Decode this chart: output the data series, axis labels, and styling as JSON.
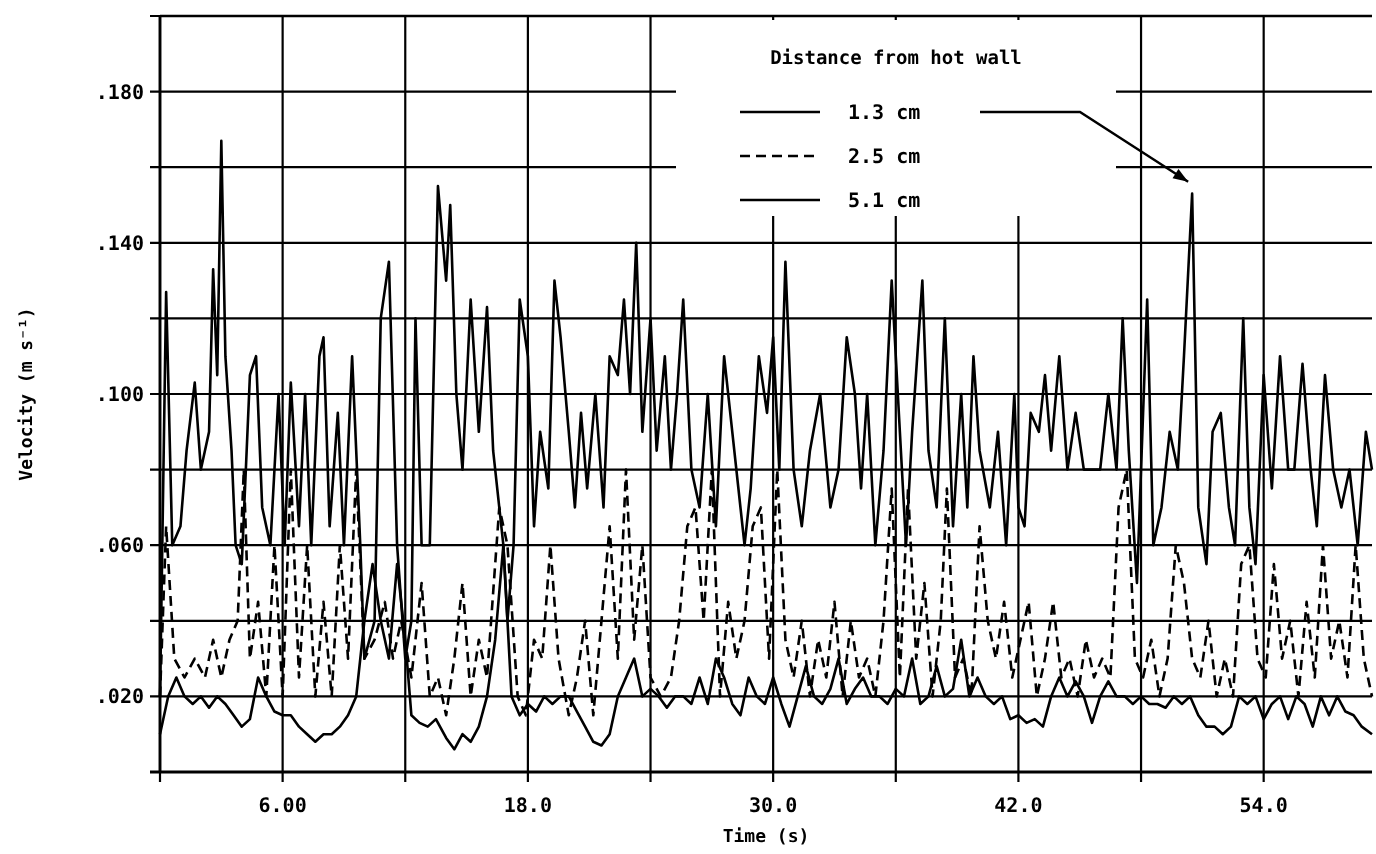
{
  "chart_data": {
    "type": "line",
    "xlabel": "Time (s)",
    "ylabel": "Velocity (m s⁻¹)",
    "legend_title": "Distance from hot wall",
    "legend": "top right",
    "grid": true,
    "marker": "none",
    "xlim": [
      0,
      59.3
    ],
    "ylim": [
      0,
      0.2
    ],
    "xticks": [
      {
        "value": 0,
        "label": null
      },
      {
        "value": 6,
        "label": "6.00"
      },
      {
        "value": 12,
        "label": null
      },
      {
        "value": 18,
        "label": "18.0"
      },
      {
        "value": 24,
        "label": null
      },
      {
        "value": 30,
        "label": "30.0"
      },
      {
        "value": 36,
        "label": null
      },
      {
        "value": 42,
        "label": "42.0"
      },
      {
        "value": 48,
        "label": null
      },
      {
        "value": 54,
        "label": "54.0"
      }
    ],
    "yticks": [
      {
        "value": 0,
        "label": null
      },
      {
        "value": 0.02,
        "label": ".020"
      },
      {
        "value": 0.04,
        "label": null
      },
      {
        "value": 0.06,
        "label": ".060"
      },
      {
        "value": 0.08,
        "label": null
      },
      {
        "value": 0.1,
        "label": ".100"
      },
      {
        "value": 0.12,
        "label": null
      },
      {
        "value": 0.14,
        "label": ".140"
      },
      {
        "value": 0.16,
        "label": null
      },
      {
        "value": 0.18,
        "label": ".180"
      },
      {
        "value": 0.2,
        "label": null
      }
    ],
    "series": [
      {
        "name": "1.3 cm",
        "color": "#000000",
        "line_style": "solid",
        "x": [
          0,
          0.3,
          0.6,
          1.0,
          1.3,
          1.7,
          2.0,
          2.4,
          2.6,
          2.8,
          3.0,
          3.2,
          3.5,
          3.7,
          4.0,
          4.4,
          4.7,
          5.0,
          5.4,
          5.8,
          6.1,
          6.4,
          6.8,
          7.1,
          7.4,
          7.8,
          8.0,
          8.3,
          8.7,
          9.0,
          9.4,
          9.8,
          10.0,
          10.5,
          10.8,
          11.2,
          11.6,
          12.0,
          12.3,
          12.5,
          12.8,
          13.2,
          13.6,
          14.0,
          14.2,
          14.5,
          14.8,
          15.2,
          15.6,
          16.0,
          16.3,
          16.8,
          17.0,
          17.3,
          17.6,
          18.0,
          18.3,
          18.6,
          19.0,
          19.3,
          19.6,
          20.0,
          20.3,
          20.6,
          20.9,
          21.3,
          21.7,
          22.0,
          22.4,
          22.7,
          23.0,
          23.3,
          23.6,
          24.0,
          24.3,
          24.7,
          25.0,
          25.3,
          25.6,
          26.0,
          26.4,
          26.8,
          27.2,
          27.6,
          28.0,
          28.3,
          28.6,
          28.9,
          29.3,
          29.7,
          30.0,
          30.3,
          30.6,
          31.0,
          31.4,
          31.8,
          32.3,
          32.8,
          33.2,
          33.6,
          34.0,
          34.3,
          34.6,
          35.0,
          35.4,
          35.8,
          36.2,
          36.5,
          36.8,
          37.3,
          37.6,
          38.0,
          38.4,
          38.8,
          39.2,
          39.5,
          39.8,
          40.1,
          40.6,
          41.0,
          41.4,
          41.8,
          42.0,
          42.3,
          42.6,
          43.0,
          43.3,
          43.6,
          44.0,
          44.4,
          44.8,
          45.2,
          45.6,
          46.0,
          46.4,
          46.8,
          47.1,
          47.4,
          47.8,
          48.3,
          48.6,
          49.0,
          49.4,
          49.8,
          50.1,
          50.5,
          50.8,
          51.2,
          51.5,
          51.9,
          52.3,
          52.6,
          53.0,
          53.3,
          53.6,
          54.0,
          54.4,
          54.8,
          55.2,
          55.5,
          55.9,
          56.3,
          56.6,
          57.0,
          57.4,
          57.8,
          58.2,
          58.6,
          59.0,
          59.3
        ],
        "values": [
          0.02,
          0.127,
          0.06,
          0.065,
          0.085,
          0.103,
          0.08,
          0.09,
          0.133,
          0.105,
          0.167,
          0.11,
          0.085,
          0.06,
          0.055,
          0.105,
          0.11,
          0.07,
          0.06,
          0.1,
          0.06,
          0.103,
          0.065,
          0.1,
          0.06,
          0.11,
          0.115,
          0.065,
          0.095,
          0.06,
          0.11,
          0.06,
          0.03,
          0.04,
          0.12,
          0.135,
          0.06,
          0.03,
          0.04,
          0.12,
          0.06,
          0.06,
          0.155,
          0.13,
          0.15,
          0.1,
          0.08,
          0.125,
          0.09,
          0.123,
          0.085,
          0.06,
          0.04,
          0.06,
          0.125,
          0.11,
          0.065,
          0.09,
          0.075,
          0.13,
          0.115,
          0.09,
          0.07,
          0.095,
          0.075,
          0.1,
          0.07,
          0.11,
          0.105,
          0.125,
          0.1,
          0.14,
          0.09,
          0.12,
          0.085,
          0.11,
          0.08,
          0.1,
          0.125,
          0.08,
          0.07,
          0.1,
          0.065,
          0.11,
          0.09,
          0.075,
          0.06,
          0.075,
          0.11,
          0.095,
          0.115,
          0.08,
          0.135,
          0.08,
          0.065,
          0.085,
          0.1,
          0.07,
          0.08,
          0.115,
          0.1,
          0.075,
          0.1,
          0.06,
          0.085,
          0.13,
          0.09,
          0.06,
          0.09,
          0.13,
          0.085,
          0.07,
          0.12,
          0.065,
          0.1,
          0.07,
          0.11,
          0.085,
          0.07,
          0.09,
          0.06,
          0.1,
          0.07,
          0.065,
          0.095,
          0.09,
          0.105,
          0.085,
          0.11,
          0.08,
          0.095,
          0.08,
          0.08,
          0.08,
          0.1,
          0.08,
          0.12,
          0.085,
          0.05,
          0.125,
          0.06,
          0.07,
          0.09,
          0.08,
          0.11,
          0.153,
          0.07,
          0.055,
          0.09,
          0.095,
          0.07,
          0.06,
          0.12,
          0.07,
          0.055,
          0.105,
          0.075,
          0.11,
          0.08,
          0.08,
          0.108,
          0.08,
          0.065,
          0.105,
          0.08,
          0.07,
          0.08,
          0.06,
          0.09,
          0.08
        ]
      },
      {
        "name": "2.5 cm",
        "color": "#000000",
        "line_style": "dashed",
        "x": [
          0,
          0.3,
          0.7,
          1.2,
          1.7,
          2.2,
          2.6,
          3.0,
          3.4,
          3.8,
          4.1,
          4.4,
          4.8,
          5.2,
          5.6,
          6.0,
          6.4,
          6.8,
          7.2,
          7.6,
          8.0,
          8.4,
          8.8,
          9.2,
          9.6,
          10.0,
          10.5,
          11.0,
          11.4,
          11.8,
          12.3,
          12.8,
          13.2,
          13.6,
          14.0,
          14.4,
          14.8,
          15.2,
          15.6,
          16.0,
          16.6,
          17.0,
          17.5,
          17.9,
          18.3,
          18.7,
          19.1,
          19.5,
          20.0,
          20.4,
          20.8,
          21.2,
          21.6,
          22.0,
          22.4,
          22.8,
          23.2,
          23.6,
          24.0,
          24.5,
          25.0,
          25.4,
          25.8,
          26.2,
          26.6,
          27.0,
          27.4,
          27.8,
          28.2,
          28.6,
          29.0,
          29.4,
          29.8,
          30.2,
          30.6,
          31.0,
          31.4,
          31.8,
          32.2,
          32.6,
          33.0,
          33.4,
          33.8,
          34.2,
          34.6,
          35.0,
          35.4,
          35.8,
          36.2,
          36.6,
          37.0,
          37.4,
          37.8,
          38.2,
          38.5,
          38.9,
          39.3,
          39.7,
          40.1,
          40.5,
          40.9,
          41.3,
          41.7,
          42.1,
          42.5,
          42.9,
          43.3,
          43.7,
          44.1,
          44.5,
          44.9,
          45.3,
          45.7,
          46.1,
          46.5,
          46.9,
          47.3,
          47.7,
          48.1,
          48.5,
          48.9,
          49.3,
          49.7,
          50.1,
          50.5,
          50.9,
          51.3,
          51.7,
          52.1,
          52.5,
          52.9,
          53.3,
          53.7,
          54.1,
          54.5,
          54.9,
          55.3,
          55.7,
          56.1,
          56.5,
          56.9,
          57.3,
          57.7,
          58.1,
          58.5,
          58.9,
          59.3
        ],
        "values": [
          0.02,
          0.065,
          0.03,
          0.025,
          0.03,
          0.025,
          0.035,
          0.025,
          0.035,
          0.04,
          0.08,
          0.03,
          0.045,
          0.02,
          0.06,
          0.02,
          0.08,
          0.025,
          0.06,
          0.02,
          0.045,
          0.02,
          0.06,
          0.03,
          0.08,
          0.03,
          0.035,
          0.045,
          0.03,
          0.04,
          0.025,
          0.05,
          0.02,
          0.025,
          0.015,
          0.03,
          0.05,
          0.02,
          0.035,
          0.025,
          0.07,
          0.06,
          0.02,
          0.015,
          0.035,
          0.03,
          0.06,
          0.03,
          0.015,
          0.025,
          0.04,
          0.015,
          0.04,
          0.065,
          0.03,
          0.08,
          0.035,
          0.06,
          0.025,
          0.02,
          0.025,
          0.04,
          0.065,
          0.07,
          0.04,
          0.08,
          0.02,
          0.045,
          0.03,
          0.04,
          0.065,
          0.07,
          0.03,
          0.08,
          0.035,
          0.025,
          0.04,
          0.02,
          0.035,
          0.025,
          0.045,
          0.02,
          0.04,
          0.025,
          0.03,
          0.02,
          0.04,
          0.075,
          0.025,
          0.075,
          0.03,
          0.05,
          0.02,
          0.04,
          0.075,
          0.025,
          0.03,
          0.02,
          0.065,
          0.04,
          0.03,
          0.045,
          0.025,
          0.035,
          0.045,
          0.02,
          0.03,
          0.045,
          0.025,
          0.03,
          0.02,
          0.035,
          0.025,
          0.03,
          0.025,
          0.07,
          0.08,
          0.03,
          0.025,
          0.035,
          0.02,
          0.03,
          0.06,
          0.05,
          0.03,
          0.025,
          0.04,
          0.02,
          0.03,
          0.02,
          0.055,
          0.06,
          0.03,
          0.025,
          0.055,
          0.03,
          0.04,
          0.02,
          0.045,
          0.025,
          0.06,
          0.03,
          0.04,
          0.025,
          0.06,
          0.03,
          0.02
        ]
      },
      {
        "name": "5.1 cm",
        "color": "#000000",
        "line_style": "solid",
        "x": [
          0,
          0.4,
          0.8,
          1.2,
          1.6,
          2.0,
          2.4,
          2.8,
          3.2,
          3.6,
          4.0,
          4.4,
          4.8,
          5.2,
          5.6,
          6.0,
          6.4,
          6.8,
          7.2,
          7.6,
          8.0,
          8.4,
          8.8,
          9.2,
          9.6,
          10.0,
          10.4,
          10.8,
          11.2,
          11.6,
          12.0,
          12.3,
          12.7,
          13.1,
          13.5,
          14.0,
          14.4,
          14.8,
          15.2,
          15.6,
          16.0,
          16.4,
          16.8,
          17.2,
          17.6,
          18.0,
          18.4,
          18.8,
          19.2,
          19.6,
          20.0,
          20.4,
          20.8,
          21.2,
          21.6,
          22.0,
          22.4,
          22.8,
          23.2,
          23.6,
          24.0,
          24.4,
          24.8,
          25.2,
          25.6,
          26.0,
          26.4,
          26.8,
          27.2,
          27.6,
          28.0,
          28.4,
          28.8,
          29.2,
          29.6,
          30.0,
          30.4,
          30.8,
          31.2,
          31.6,
          32.0,
          32.4,
          32.8,
          33.2,
          33.6,
          34.0,
          34.4,
          34.8,
          35.2,
          35.6,
          36.0,
          36.4,
          36.8,
          37.2,
          37.6,
          38.0,
          38.4,
          38.8,
          39.2,
          39.6,
          40.0,
          40.4,
          40.8,
          41.2,
          41.6,
          42.0,
          42.4,
          42.8,
          43.2,
          43.6,
          44.0,
          44.4,
          44.8,
          45.2,
          45.6,
          46.0,
          46.4,
          46.8,
          47.2,
          47.6,
          48.0,
          48.4,
          48.8,
          49.2,
          49.6,
          50.0,
          50.4,
          50.8,
          51.2,
          51.6,
          52.0,
          52.4,
          52.8,
          53.2,
          53.6,
          54.0,
          54.4,
          54.8,
          55.2,
          55.6,
          56.0,
          56.4,
          56.8,
          57.2,
          57.6,
          58.0,
          58.4,
          58.8,
          59.3
        ],
        "values": [
          0.01,
          0.02,
          0.025,
          0.02,
          0.018,
          0.02,
          0.017,
          0.02,
          0.018,
          0.015,
          0.012,
          0.014,
          0.025,
          0.02,
          0.016,
          0.015,
          0.015,
          0.012,
          0.01,
          0.008,
          0.01,
          0.01,
          0.012,
          0.015,
          0.02,
          0.04,
          0.055,
          0.04,
          0.03,
          0.055,
          0.035,
          0.015,
          0.013,
          0.012,
          0.014,
          0.009,
          0.006,
          0.01,
          0.008,
          0.012,
          0.02,
          0.035,
          0.06,
          0.02,
          0.015,
          0.018,
          0.016,
          0.02,
          0.018,
          0.02,
          0.02,
          0.016,
          0.012,
          0.008,
          0.007,
          0.01,
          0.02,
          0.025,
          0.03,
          0.02,
          0.022,
          0.02,
          0.017,
          0.02,
          0.02,
          0.018,
          0.025,
          0.018,
          0.03,
          0.025,
          0.018,
          0.015,
          0.025,
          0.02,
          0.018,
          0.025,
          0.018,
          0.012,
          0.02,
          0.028,
          0.02,
          0.018,
          0.022,
          0.03,
          0.018,
          0.022,
          0.025,
          0.02,
          0.02,
          0.018,
          0.022,
          0.02,
          0.03,
          0.018,
          0.02,
          0.028,
          0.02,
          0.022,
          0.035,
          0.02,
          0.025,
          0.02,
          0.018,
          0.02,
          0.014,
          0.015,
          0.013,
          0.014,
          0.012,
          0.02,
          0.025,
          0.02,
          0.024,
          0.02,
          0.013,
          0.02,
          0.024,
          0.02,
          0.02,
          0.018,
          0.02,
          0.018,
          0.018,
          0.017,
          0.02,
          0.018,
          0.02,
          0.015,
          0.012,
          0.012,
          0.01,
          0.012,
          0.02,
          0.018,
          0.02,
          0.014,
          0.018,
          0.02,
          0.014,
          0.02,
          0.018,
          0.012,
          0.02,
          0.015,
          0.02,
          0.016,
          0.015,
          0.012,
          0.01
        ]
      }
    ]
  }
}
